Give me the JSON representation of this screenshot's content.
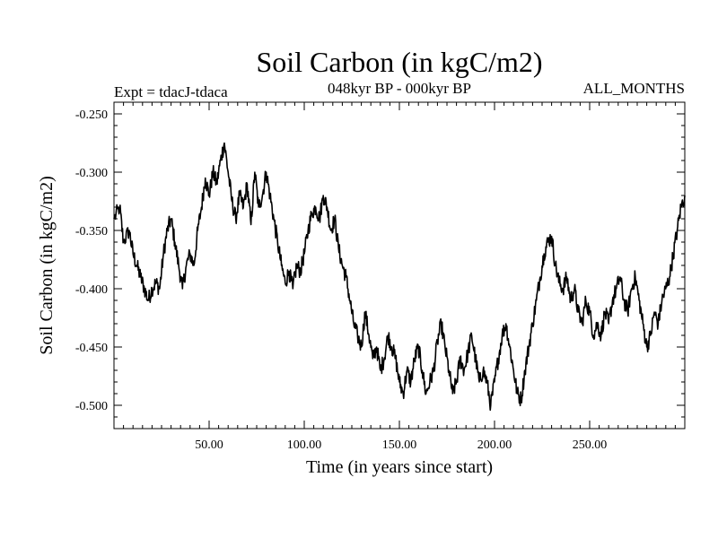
{
  "chart_data": {
    "type": "line",
    "title": "Soil Carbon (in kgC/m2)",
    "subtitle": "048kyr BP - 000kyr BP",
    "experiment": "Expt = tdacJ-tdaca",
    "months": "ALL_MONTHS",
    "xlabel": "Time (in years since start)",
    "ylabel": "Soil Carbon (in kgC/m2)",
    "xlim": [
      0,
      300
    ],
    "ylim": [
      -0.52,
      -0.24
    ],
    "x_ticks": [
      50,
      100,
      150,
      200,
      250
    ],
    "x_tick_labels": [
      "50.00",
      "100.00",
      "150.00",
      "200.00",
      "250.00"
    ],
    "y_ticks": [
      -0.25,
      -0.3,
      -0.35,
      -0.4,
      -0.45,
      -0.5
    ],
    "y_tick_labels": [
      "-0.250",
      "-0.300",
      "-0.350",
      "-0.400",
      "-0.450",
      "-0.500"
    ],
    "series": [
      {
        "name": "Soil Carbon",
        "x": [
          0,
          3,
          5,
          8,
          10,
          12,
          14,
          16,
          18,
          20,
          22,
          24,
          26,
          28,
          30,
          32,
          34,
          36,
          38,
          40,
          42,
          44,
          46,
          48,
          50,
          52,
          54,
          56,
          58,
          60,
          62,
          64,
          66,
          68,
          70,
          72,
          74,
          76,
          78,
          80,
          82,
          84,
          86,
          88,
          90,
          92,
          94,
          96,
          98,
          100,
          102,
          104,
          106,
          108,
          110,
          112,
          114,
          116,
          118,
          120,
          122,
          124,
          126,
          128,
          130,
          132,
          134,
          136,
          138,
          140,
          142,
          144,
          146,
          148,
          150,
          152,
          154,
          156,
          158,
          160,
          162,
          164,
          166,
          168,
          170,
          172,
          174,
          176,
          178,
          180,
          182,
          184,
          186,
          188,
          190,
          192,
          194,
          196,
          198,
          200,
          202,
          204,
          206,
          208,
          210,
          212,
          214,
          216,
          218,
          220,
          222,
          224,
          226,
          228,
          230,
          232,
          234,
          236,
          238,
          240,
          242,
          244,
          246,
          248,
          250,
          252,
          254,
          256,
          258,
          260,
          262,
          264,
          266,
          268,
          270,
          272,
          274,
          276,
          278,
          280,
          282,
          284,
          286,
          288,
          290,
          292,
          294,
          296,
          298,
          300
        ],
        "values": [
          -0.34,
          -0.33,
          -0.36,
          -0.35,
          -0.37,
          -0.38,
          -0.39,
          -0.4,
          -0.41,
          -0.4,
          -0.395,
          -0.4,
          -0.37,
          -0.35,
          -0.34,
          -0.36,
          -0.38,
          -0.4,
          -0.38,
          -0.37,
          -0.38,
          -0.35,
          -0.33,
          -0.305,
          -0.32,
          -0.3,
          -0.31,
          -0.29,
          -0.275,
          -0.3,
          -0.325,
          -0.34,
          -0.32,
          -0.33,
          -0.31,
          -0.345,
          -0.3,
          -0.33,
          -0.32,
          -0.3,
          -0.32,
          -0.34,
          -0.36,
          -0.38,
          -0.395,
          -0.385,
          -0.4,
          -0.38,
          -0.385,
          -0.37,
          -0.35,
          -0.335,
          -0.33,
          -0.34,
          -0.32,
          -0.33,
          -0.35,
          -0.34,
          -0.365,
          -0.38,
          -0.39,
          -0.41,
          -0.43,
          -0.44,
          -0.45,
          -0.42,
          -0.44,
          -0.46,
          -0.45,
          -0.47,
          -0.46,
          -0.44,
          -0.45,
          -0.46,
          -0.48,
          -0.49,
          -0.47,
          -0.48,
          -0.46,
          -0.45,
          -0.47,
          -0.49,
          -0.48,
          -0.47,
          -0.445,
          -0.43,
          -0.45,
          -0.47,
          -0.49,
          -0.48,
          -0.46,
          -0.47,
          -0.455,
          -0.44,
          -0.46,
          -0.48,
          -0.47,
          -0.48,
          -0.5,
          -0.48,
          -0.46,
          -0.44,
          -0.43,
          -0.45,
          -0.47,
          -0.49,
          -0.495,
          -0.47,
          -0.45,
          -0.43,
          -0.41,
          -0.39,
          -0.37,
          -0.36,
          -0.355,
          -0.38,
          -0.395,
          -0.4,
          -0.39,
          -0.41,
          -0.4,
          -0.42,
          -0.43,
          -0.41,
          -0.42,
          -0.44,
          -0.43,
          -0.44,
          -0.42,
          -0.43,
          -0.41,
          -0.4,
          -0.39,
          -0.41,
          -0.42,
          -0.4,
          -0.39,
          -0.41,
          -0.43,
          -0.45,
          -0.44,
          -0.42,
          -0.43,
          -0.41,
          -0.4,
          -0.39,
          -0.37,
          -0.35,
          -0.33,
          -0.32
        ]
      }
    ]
  }
}
